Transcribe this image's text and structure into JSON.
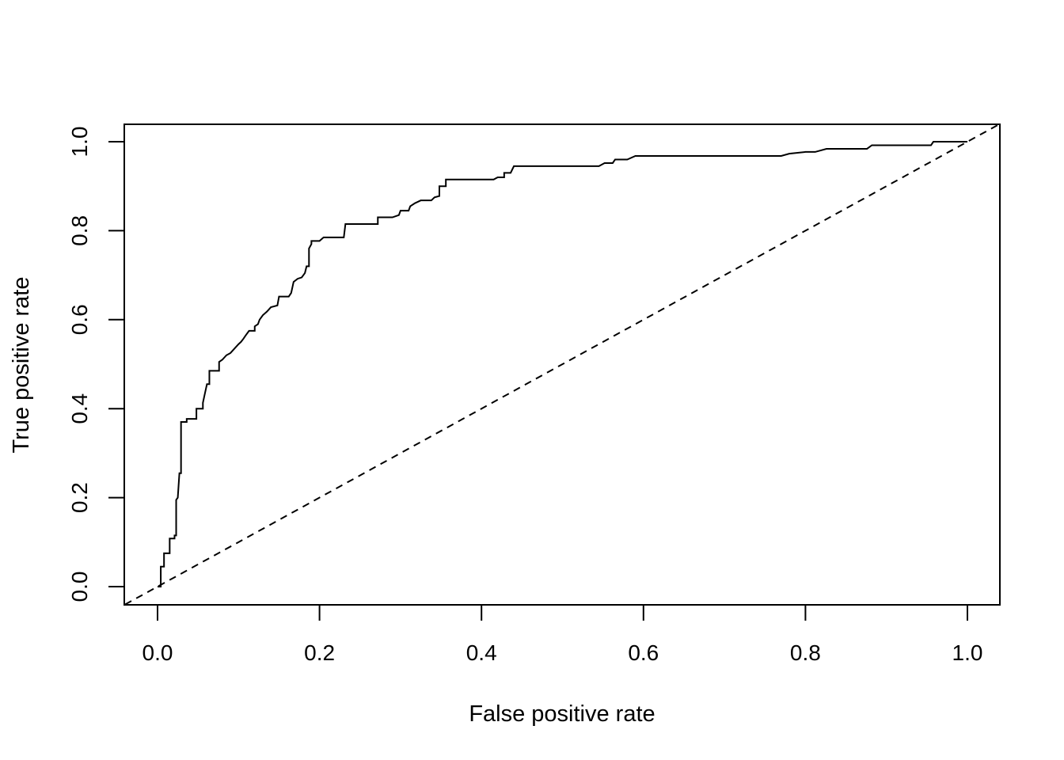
{
  "chart_data": {
    "type": "line",
    "title": "",
    "xlabel": "False positive rate",
    "ylabel": "True positive rate",
    "xlim": [
      0,
      1
    ],
    "ylim": [
      0,
      1
    ],
    "x_ticks": [
      "0.0",
      "0.2",
      "0.4",
      "0.6",
      "0.8",
      "1.0"
    ],
    "y_ticks": [
      "0.0",
      "0.2",
      "0.4",
      "0.6",
      "0.8",
      "1.0"
    ],
    "grid": false,
    "legend": "none",
    "series": [
      {
        "style": "solid-step",
        "color": "#000000",
        "points": [
          [
            0.0,
            0.0
          ],
          [
            0.004,
            0.0
          ],
          [
            0.004,
            0.045
          ],
          [
            0.008,
            0.045
          ],
          [
            0.008,
            0.075
          ],
          [
            0.015,
            0.075
          ],
          [
            0.015,
            0.108
          ],
          [
            0.021,
            0.108
          ],
          [
            0.021,
            0.115
          ],
          [
            0.023,
            0.115
          ],
          [
            0.023,
            0.195
          ],
          [
            0.025,
            0.2
          ],
          [
            0.027,
            0.255
          ],
          [
            0.029,
            0.255
          ],
          [
            0.029,
            0.37
          ],
          [
            0.036,
            0.37
          ],
          [
            0.036,
            0.377
          ],
          [
            0.048,
            0.377
          ],
          [
            0.048,
            0.4
          ],
          [
            0.056,
            0.4
          ],
          [
            0.056,
            0.413
          ],
          [
            0.058,
            0.43
          ],
          [
            0.061,
            0.455
          ],
          [
            0.064,
            0.455
          ],
          [
            0.064,
            0.485
          ],
          [
            0.076,
            0.485
          ],
          [
            0.076,
            0.505
          ],
          [
            0.08,
            0.51
          ],
          [
            0.085,
            0.52
          ],
          [
            0.09,
            0.525
          ],
          [
            0.095,
            0.535
          ],
          [
            0.1,
            0.545
          ],
          [
            0.103,
            0.55
          ],
          [
            0.106,
            0.557
          ],
          [
            0.109,
            0.565
          ],
          [
            0.113,
            0.575
          ],
          [
            0.12,
            0.575
          ],
          [
            0.12,
            0.585
          ],
          [
            0.124,
            0.59
          ],
          [
            0.126,
            0.6
          ],
          [
            0.13,
            0.61
          ],
          [
            0.135,
            0.618
          ],
          [
            0.14,
            0.628
          ],
          [
            0.148,
            0.632
          ],
          [
            0.15,
            0.652
          ],
          [
            0.162,
            0.652
          ],
          [
            0.165,
            0.66
          ],
          [
            0.168,
            0.685
          ],
          [
            0.173,
            0.692
          ],
          [
            0.178,
            0.695
          ],
          [
            0.182,
            0.705
          ],
          [
            0.184,
            0.72
          ],
          [
            0.187,
            0.72
          ],
          [
            0.187,
            0.76
          ],
          [
            0.19,
            0.77
          ],
          [
            0.19,
            0.777
          ],
          [
            0.2,
            0.777
          ],
          [
            0.205,
            0.785
          ],
          [
            0.23,
            0.785
          ],
          [
            0.232,
            0.815
          ],
          [
            0.272,
            0.815
          ],
          [
            0.272,
            0.83
          ],
          [
            0.29,
            0.83
          ],
          [
            0.298,
            0.835
          ],
          [
            0.3,
            0.845
          ],
          [
            0.31,
            0.845
          ],
          [
            0.312,
            0.855
          ],
          [
            0.318,
            0.862
          ],
          [
            0.325,
            0.868
          ],
          [
            0.338,
            0.868
          ],
          [
            0.342,
            0.875
          ],
          [
            0.348,
            0.878
          ],
          [
            0.348,
            0.9
          ],
          [
            0.356,
            0.9
          ],
          [
            0.356,
            0.915
          ],
          [
            0.415,
            0.915
          ],
          [
            0.42,
            0.92
          ],
          [
            0.428,
            0.92
          ],
          [
            0.428,
            0.93
          ],
          [
            0.436,
            0.93
          ],
          [
            0.44,
            0.945
          ],
          [
            0.545,
            0.945
          ],
          [
            0.552,
            0.952
          ],
          [
            0.562,
            0.952
          ],
          [
            0.565,
            0.96
          ],
          [
            0.58,
            0.96
          ],
          [
            0.59,
            0.968
          ],
          [
            0.77,
            0.968
          ],
          [
            0.78,
            0.973
          ],
          [
            0.8,
            0.977
          ],
          [
            0.812,
            0.977
          ],
          [
            0.826,
            0.984
          ],
          [
            0.876,
            0.984
          ],
          [
            0.882,
            0.992
          ],
          [
            0.955,
            0.992
          ],
          [
            0.958,
            1.0
          ],
          [
            1.0,
            1.0
          ]
        ]
      },
      {
        "style": "dashed",
        "color": "#000000",
        "points": [
          [
            -0.04,
            -0.04
          ],
          [
            1.04,
            1.04
          ]
        ]
      }
    ]
  }
}
